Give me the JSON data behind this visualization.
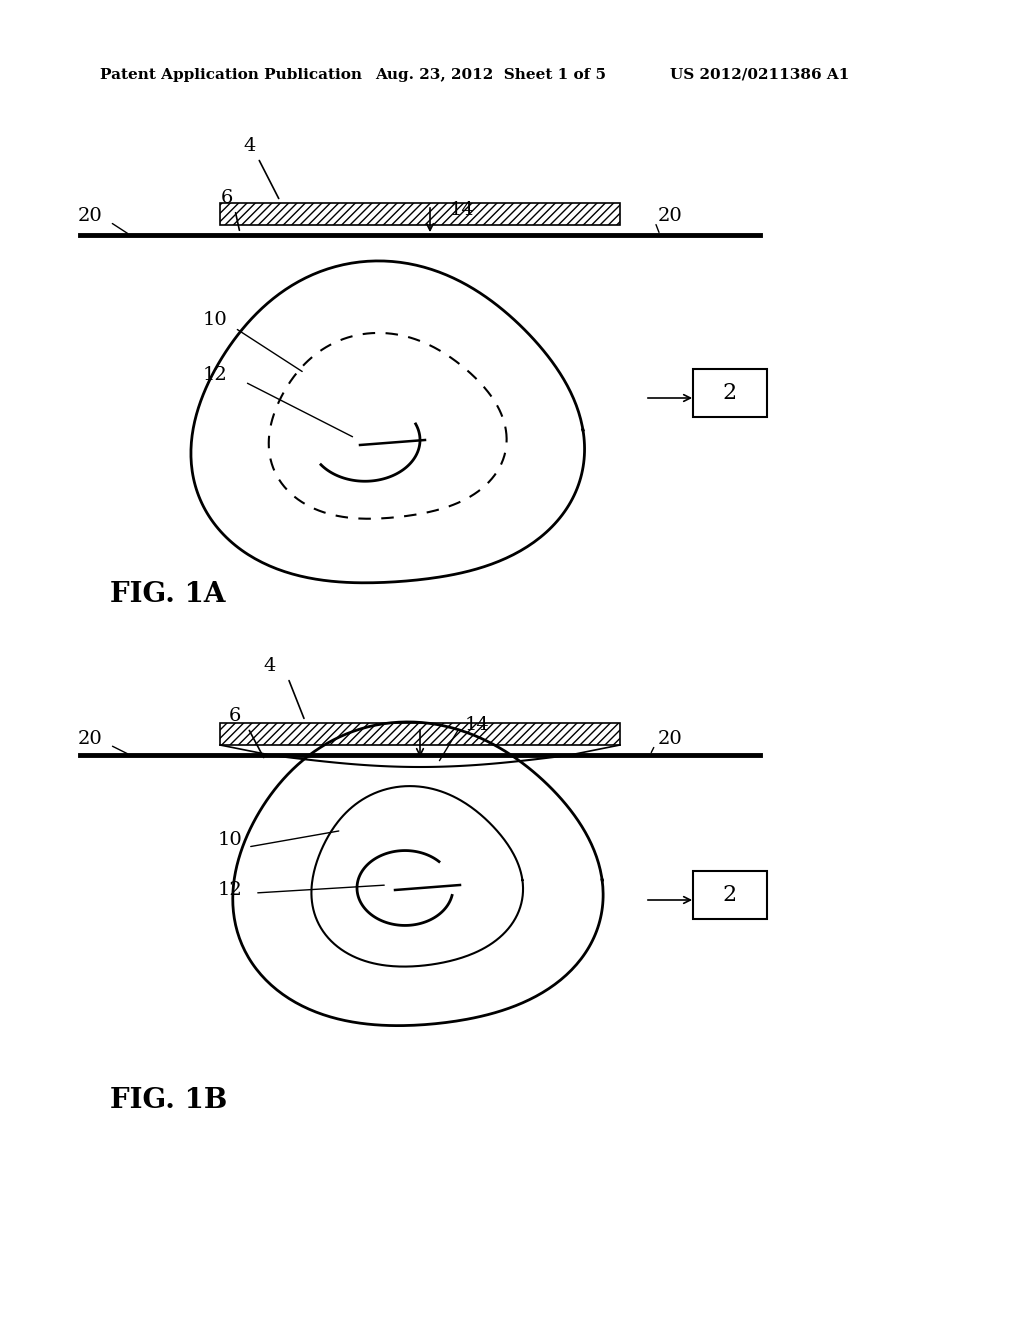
{
  "bg_color": "#ffffff",
  "header_text": "Patent Application Publication",
  "header_date": "Aug. 23, 2012  Sheet 1 of 5",
  "header_patent": "US 2012/0211386 A1",
  "fig1a_label": "FIG. 1A",
  "fig1b_label": "FIG. 1B",
  "label_2": "2",
  "label_4": "4",
  "label_6": "6",
  "label_10": "10",
  "label_12": "12",
  "label_14": "14",
  "label_20_left": "20",
  "label_20_right": "20"
}
